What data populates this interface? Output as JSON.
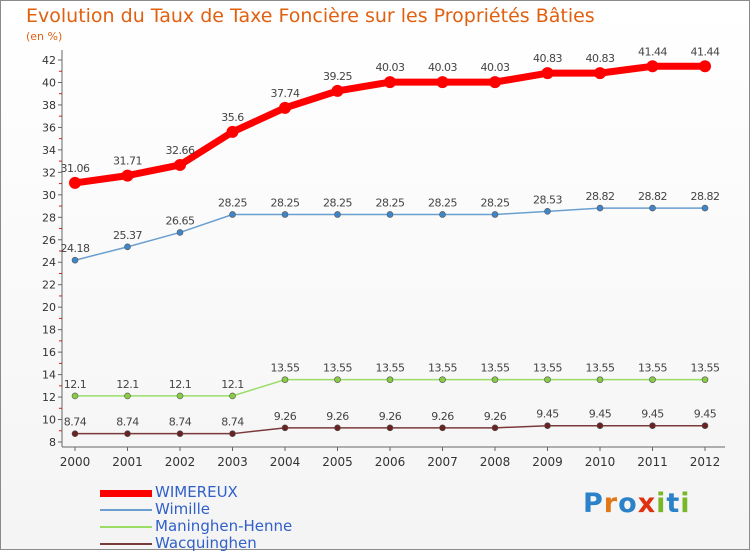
{
  "chart_data": {
    "type": "line",
    "title": "Evolution du Taux de Taxe Foncière sur les Propriétés Bâties",
    "ylabel": "(en %)",
    "xlabel": "",
    "ylim": [
      8,
      42
    ],
    "yticks": [
      8,
      10,
      12,
      14,
      16,
      18,
      20,
      22,
      24,
      26,
      28,
      30,
      32,
      34,
      36,
      38,
      40,
      42
    ],
    "x": [
      "2000",
      "2001",
      "2002",
      "2003",
      "2004",
      "2005",
      "2006",
      "2007",
      "2008",
      "2009",
      "2010",
      "2011",
      "2012"
    ],
    "grid": false,
    "legend_position": "bottom-left",
    "series": [
      {
        "name": "WIMEREUX",
        "color": "#ff0000",
        "marker": "#ff0000",
        "values": [
          31.06,
          31.71,
          32.66,
          35.6,
          37.74,
          39.25,
          40.03,
          40.03,
          40.03,
          40.83,
          40.83,
          41.44,
          41.44
        ],
        "labels": [
          "31.06",
          "31.71",
          "32.66",
          "35.6",
          "37.74",
          "39.25",
          "40.03",
          "40.03",
          "40.03",
          "40.83",
          "40.83",
          "41.44",
          "41.44"
        ]
      },
      {
        "name": "Wimille",
        "color": "#6a9fd0",
        "marker": "#3f86c8",
        "values": [
          24.18,
          25.37,
          26.65,
          28.25,
          28.25,
          28.25,
          28.25,
          28.25,
          28.25,
          28.53,
          28.82,
          28.82,
          28.82
        ],
        "labels": [
          "24.18",
          "25.37",
          "26.65",
          "28.25",
          "28.25",
          "28.25",
          "28.25",
          "28.25",
          "28.25",
          "28.53",
          "28.82",
          "28.82",
          "28.82"
        ]
      },
      {
        "name": "Maninghen-Henne",
        "color": "#99dd66",
        "marker": "#88cc44",
        "values": [
          12.1,
          12.1,
          12.1,
          12.1,
          13.55,
          13.55,
          13.55,
          13.55,
          13.55,
          13.55,
          13.55,
          13.55,
          13.55
        ],
        "labels": [
          "12.1",
          "12.1",
          "12.1",
          "12.1",
          "13.55",
          "13.55",
          "13.55",
          "13.55",
          "13.55",
          "13.55",
          "13.55",
          "13.55",
          "13.55"
        ]
      },
      {
        "name": "Wacquinghen",
        "color": "#7a3a3a",
        "marker": "#6a2222",
        "values": [
          8.74,
          8.74,
          8.74,
          8.74,
          9.26,
          9.26,
          9.26,
          9.26,
          9.26,
          9.45,
          9.45,
          9.45,
          9.45
        ],
        "labels": [
          "8.74",
          "8.74",
          "8.74",
          "8.74",
          "9.26",
          "9.26",
          "9.26",
          "9.26",
          "9.26",
          "9.45",
          "9.45",
          "9.45",
          "9.45"
        ]
      }
    ]
  },
  "logo": {
    "text": "Proxiti",
    "letters": [
      "P",
      "r",
      "o",
      "x",
      "i",
      "t",
      "i"
    ],
    "colors": [
      "#2b82c9",
      "#e07818",
      "#2b82c9",
      "#e03010",
      "#78b828",
      "#2b82c9",
      "#78b828"
    ]
  }
}
